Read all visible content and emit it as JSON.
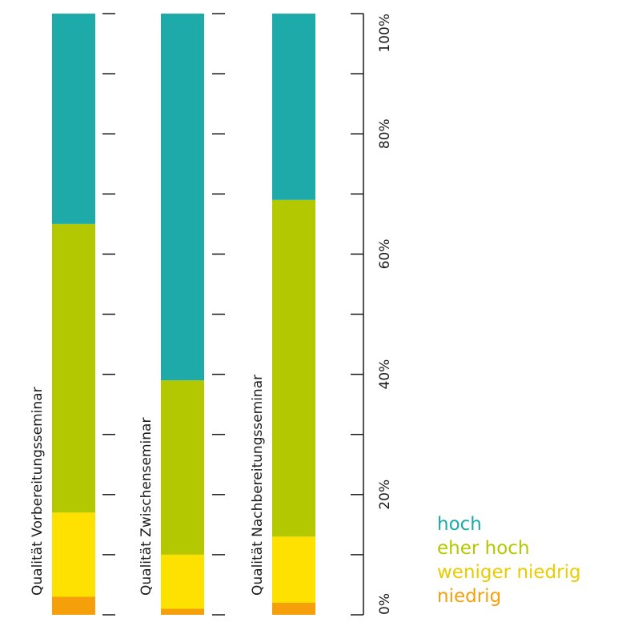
{
  "chart_data": {
    "type": "bar",
    "stacked": true,
    "orientation": "vertical",
    "categories": [
      "Qualität Vorbereitungsseminar",
      "Qualität Zwischenseminar",
      "Qualität Nachbereitungsseminar"
    ],
    "series": [
      {
        "name": "niedrig",
        "color": "#F5A00A",
        "values": [
          3,
          1,
          2
        ]
      },
      {
        "name": "weniger niedrig",
        "color": "#FFE100",
        "values": [
          14,
          9,
          11
        ]
      },
      {
        "name": "eher hoch",
        "color": "#B4C800",
        "values": [
          48,
          29,
          56
        ]
      },
      {
        "name": "hoch",
        "color": "#1FAAAA",
        "values": [
          35,
          61,
          31
        ]
      }
    ],
    "ylim": [
      0,
      100
    ],
    "ytick_labels": [
      "0%",
      "20%",
      "40%",
      "60%",
      "80%",
      "100%"
    ],
    "ytick_values": [
      0,
      20,
      40,
      60,
      80,
      100
    ],
    "minor_tick_step": 10,
    "legend_position": "bottom-right",
    "legend_order": [
      "hoch",
      "eher hoch",
      "weniger niedrig",
      "niedrig"
    ]
  }
}
